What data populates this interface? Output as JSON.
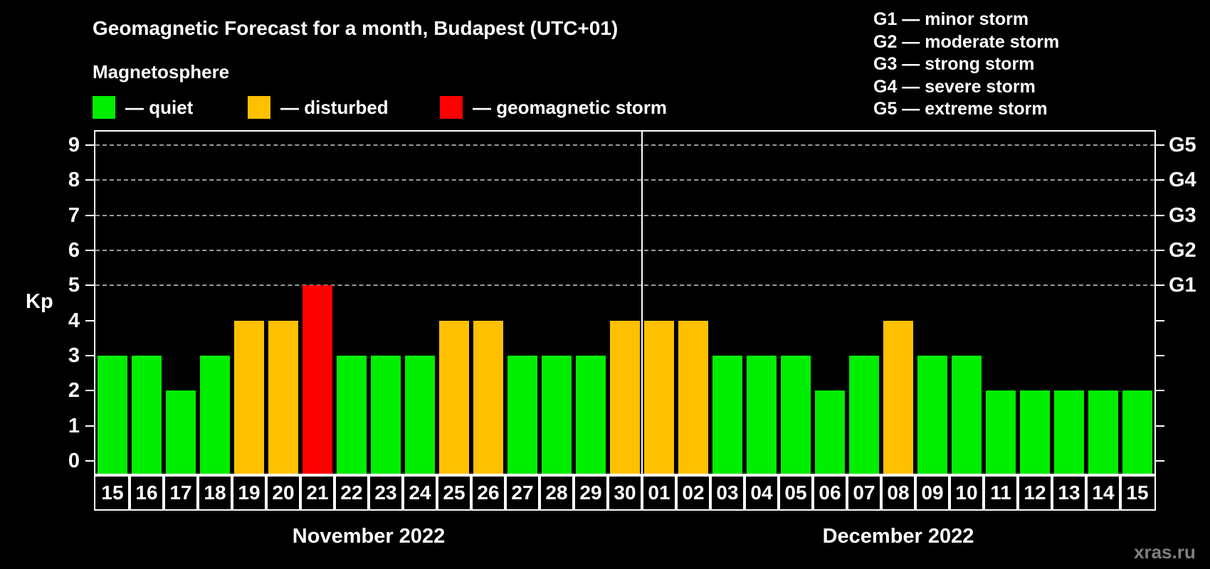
{
  "header": {
    "title": "Geomagnetic Forecast for a month, Budapest (UTC+01)",
    "subtitle": "Magnetosphere"
  },
  "legend": {
    "items": [
      {
        "status": "quiet",
        "label": "— quiet"
      },
      {
        "status": "disturbed",
        "label": "— disturbed"
      },
      {
        "status": "storm",
        "label": "— geomagnetic storm"
      }
    ]
  },
  "g_legend": [
    "G1 — minor storm",
    "G2 — moderate storm",
    "G3 — strong storm",
    "G4 — severe storm",
    "G5 — extreme storm"
  ],
  "watermark": "xras.ru",
  "chart_data": {
    "type": "bar",
    "ylabel": "Kp",
    "yticks": [
      0,
      1,
      2,
      3,
      4,
      5,
      6,
      7,
      8,
      9
    ],
    "ylim": [
      -0.36,
      9.38
    ],
    "grid_kp": [
      5,
      6,
      7,
      8,
      9
    ],
    "right_axis": [
      {
        "kp": 5,
        "label": "G1"
      },
      {
        "kp": 6,
        "label": "G2"
      },
      {
        "kp": 7,
        "label": "G3"
      },
      {
        "kp": 8,
        "label": "G4"
      },
      {
        "kp": 9,
        "label": "G5"
      }
    ],
    "status_colors": {
      "quiet": "#00ee00",
      "disturbed": "#ffc000",
      "storm": "#ff0000"
    },
    "colors": {
      "grid": "#9a9a9a",
      "axis": "#ffffff",
      "separator": "#ffffff",
      "background": "#000000"
    },
    "months": [
      {
        "label": "November 2022",
        "bars": [
          {
            "day": "15",
            "kp": 3,
            "status": "quiet"
          },
          {
            "day": "16",
            "kp": 3,
            "status": "quiet"
          },
          {
            "day": "17",
            "kp": 2,
            "status": "quiet"
          },
          {
            "day": "18",
            "kp": 3,
            "status": "quiet"
          },
          {
            "day": "19",
            "kp": 4,
            "status": "disturbed"
          },
          {
            "day": "20",
            "kp": 4,
            "status": "disturbed"
          },
          {
            "day": "21",
            "kp": 5,
            "status": "storm"
          },
          {
            "day": "22",
            "kp": 3,
            "status": "quiet"
          },
          {
            "day": "23",
            "kp": 3,
            "status": "quiet"
          },
          {
            "day": "24",
            "kp": 3,
            "status": "quiet"
          },
          {
            "day": "25",
            "kp": 4,
            "status": "disturbed"
          },
          {
            "day": "26",
            "kp": 4,
            "status": "disturbed"
          },
          {
            "day": "27",
            "kp": 3,
            "status": "quiet"
          },
          {
            "day": "28",
            "kp": 3,
            "status": "quiet"
          },
          {
            "day": "29",
            "kp": 3,
            "status": "quiet"
          },
          {
            "day": "30",
            "kp": 4,
            "status": "disturbed"
          }
        ]
      },
      {
        "label": "December 2022",
        "bars": [
          {
            "day": "01",
            "kp": 4,
            "status": "disturbed"
          },
          {
            "day": "02",
            "kp": 4,
            "status": "disturbed"
          },
          {
            "day": "03",
            "kp": 3,
            "status": "quiet"
          },
          {
            "day": "04",
            "kp": 3,
            "status": "quiet"
          },
          {
            "day": "05",
            "kp": 3,
            "status": "quiet"
          },
          {
            "day": "06",
            "kp": 2,
            "status": "quiet"
          },
          {
            "day": "07",
            "kp": 3,
            "status": "quiet"
          },
          {
            "day": "08",
            "kp": 4,
            "status": "disturbed"
          },
          {
            "day": "09",
            "kp": 3,
            "status": "quiet"
          },
          {
            "day": "10",
            "kp": 3,
            "status": "quiet"
          },
          {
            "day": "11",
            "kp": 2,
            "status": "quiet"
          },
          {
            "day": "12",
            "kp": 2,
            "status": "quiet"
          },
          {
            "day": "13",
            "kp": 2,
            "status": "quiet"
          },
          {
            "day": "14",
            "kp": 2,
            "status": "quiet"
          },
          {
            "day": "15",
            "kp": 2,
            "status": "quiet"
          }
        ]
      }
    ]
  }
}
